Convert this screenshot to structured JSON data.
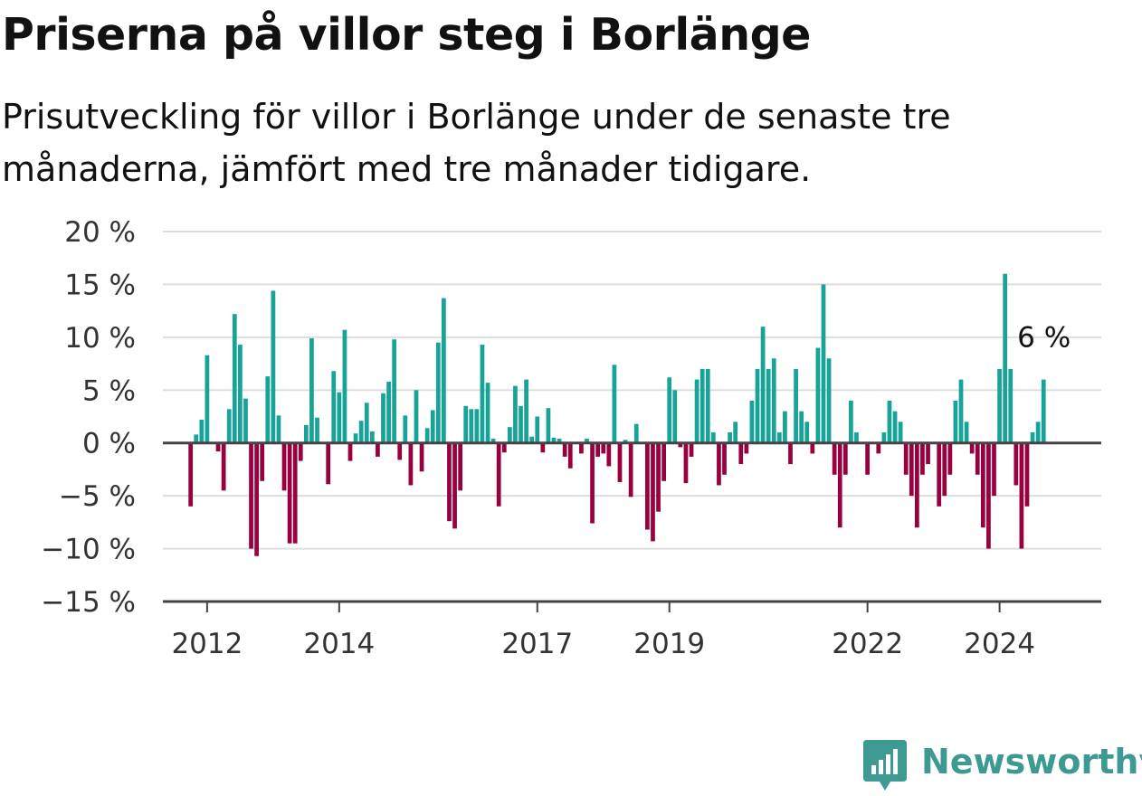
{
  "title": "Priserna på villor steg i Borlänge",
  "subtitle": "Prisutveckling för villor i Borlänge under de senaste tre månaderna, jämfört med tre månader tidigare.",
  "brand": {
    "name": "Newsworthy",
    "logo_icon": "newsworthy-logo-icon"
  },
  "colors": {
    "positive": "#17a398",
    "negative": "#99003f",
    "grid": "#dddddd",
    "axis": "#444444"
  },
  "chart_data": {
    "type": "bar",
    "y_tick_values": [
      -15,
      -10,
      -5,
      0,
      5,
      10,
      15,
      20
    ],
    "y_tick_labels": [
      "−15 %",
      "−10 %",
      "−5 %",
      "0 %",
      "5 %",
      "10 %",
      "15 %",
      "20 %"
    ],
    "ylim": [
      -15,
      20
    ],
    "x_tick_labels": [
      "2012",
      "2014",
      "2017",
      "2019",
      "2022",
      "2024"
    ],
    "x_tick_values": [
      2012,
      2014,
      2017,
      2019,
      2022,
      2024
    ],
    "x_range": [
      2011.33,
      2025.54
    ],
    "x_start": 2011.75,
    "bar_step_years": 0.08333,
    "grid": true,
    "annotation": {
      "text": "6 %",
      "target_bar": "last"
    },
    "values": [
      -6.0,
      0.8,
      2.2,
      8.3,
      0,
      -0.8,
      -4.5,
      3.2,
      12.2,
      9.3,
      4.2,
      -10.0,
      -10.7,
      -3.6,
      6.3,
      14.4,
      2.6,
      -4.5,
      -9.5,
      -9.5,
      -1.7,
      1.7,
      9.9,
      2.4,
      0,
      -3.9,
      6.8,
      4.8,
      10.7,
      -1.7,
      0.9,
      2.1,
      3.8,
      1.1,
      -1.3,
      4.7,
      5.8,
      9.8,
      -1.6,
      2.6,
      -4.0,
      5.0,
      -2.7,
      1.4,
      3.1,
      9.5,
      13.7,
      -7.4,
      -8.1,
      -4.5,
      3.5,
      3.2,
      3.2,
      9.3,
      5.7,
      0.4,
      -6.0,
      -0.9,
      1.5,
      5.4,
      3.5,
      6.0,
      0.6,
      2.5,
      -0.9,
      3.3,
      0.5,
      0.4,
      -1.3,
      -2.4,
      0,
      -1.0,
      0.4,
      -7.6,
      -1.3,
      -1.0,
      -2.2,
      7.4,
      -3.7,
      0.3,
      -5.1,
      1.8,
      0,
      -8.2,
      -9.3,
      -6.5,
      -3.6,
      6.2,
      5.0,
      -0.4,
      -3.8,
      -1.3,
      6.0,
      7.0,
      7.0,
      1.0,
      -4.0,
      -3.0,
      1.0,
      2.0,
      -2.0,
      -1.0,
      4.0,
      7.0,
      11.0,
      7.0,
      8.0,
      1.0,
      3.0,
      -2.0,
      7.0,
      3.0,
      2.0,
      -1.0,
      9.0,
      15.0,
      8.0,
      -3.0,
      -8.0,
      -3.0,
      4.0,
      1.0,
      0,
      -3.0,
      0,
      -1.0,
      1.0,
      4.0,
      3.0,
      2.0,
      -3.0,
      -5.0,
      -8.0,
      -3.0,
      -2.0,
      0,
      -6.0,
      -5.0,
      -3.0,
      4.0,
      6.0,
      2.0,
      -1.0,
      -3.0,
      -8.0,
      -10.0,
      -5.0,
      7.0,
      16.0,
      7.0,
      -4.0,
      -10.0,
      -6.0,
      1.0,
      2.0,
      6.0
    ]
  }
}
